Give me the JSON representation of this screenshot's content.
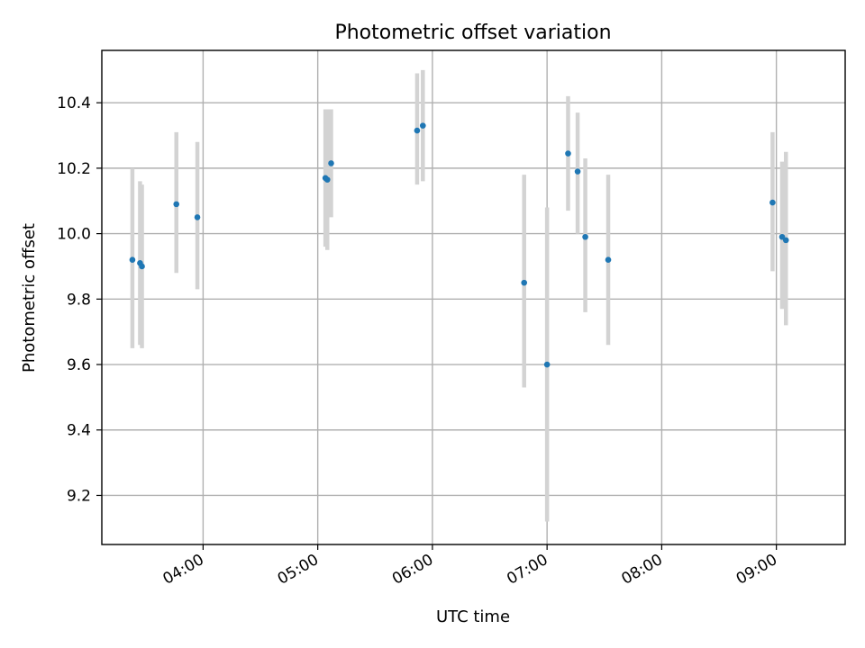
{
  "chart_data": {
    "type": "scatter",
    "title": "Photometric offset variation",
    "xlabel": "UTC time",
    "ylabel": "Photometric offset",
    "x_ticks": [
      "04:00",
      "05:00",
      "06:00",
      "07:00",
      "08:00",
      "09:00"
    ],
    "y_ticks": [
      "9.2",
      "9.4",
      "9.6",
      "9.8",
      "10.0",
      "10.2",
      "10.4"
    ],
    "xlim": [
      "03:07",
      "09:36"
    ],
    "ylim": [
      9.05,
      10.56
    ],
    "grid": true,
    "colors": {
      "point": "#1f77b4",
      "errorbar": "#d3d3d3",
      "grid": "#b0b0b0"
    },
    "points": [
      {
        "time": "03:23",
        "y": 9.92,
        "ylow": 9.65,
        "yhigh": 10.2
      },
      {
        "time": "03:27",
        "y": 9.91,
        "ylow": 9.66,
        "yhigh": 10.16
      },
      {
        "time": "03:28",
        "y": 9.9,
        "ylow": 9.65,
        "yhigh": 10.15
      },
      {
        "time": "03:46",
        "y": 10.09,
        "ylow": 9.88,
        "yhigh": 10.31
      },
      {
        "time": "03:57",
        "y": 10.05,
        "ylow": 9.83,
        "yhigh": 10.28
      },
      {
        "time": "05:04",
        "y": 10.17,
        "ylow": 9.96,
        "yhigh": 10.38
      },
      {
        "time": "05:05",
        "y": 10.165,
        "ylow": 9.95,
        "yhigh": 10.38
      },
      {
        "time": "05:07",
        "y": 10.215,
        "ylow": 10.05,
        "yhigh": 10.38
      },
      {
        "time": "05:52",
        "y": 10.315,
        "ylow": 10.15,
        "yhigh": 10.49
      },
      {
        "time": "05:55",
        "y": 10.33,
        "ylow": 10.16,
        "yhigh": 10.5
      },
      {
        "time": "06:48",
        "y": 9.85,
        "ylow": 9.53,
        "yhigh": 10.18
      },
      {
        "time": "07:00",
        "y": 9.6,
        "ylow": 9.12,
        "yhigh": 10.08
      },
      {
        "time": "07:11",
        "y": 10.245,
        "ylow": 10.07,
        "yhigh": 10.42
      },
      {
        "time": "07:16",
        "y": 10.19,
        "ylow": 10.0,
        "yhigh": 10.37
      },
      {
        "time": "07:20",
        "y": 9.99,
        "ylow": 9.76,
        "yhigh": 10.23
      },
      {
        "time": "07:32",
        "y": 9.92,
        "ylow": 9.66,
        "yhigh": 10.18
      },
      {
        "time": "08:58",
        "y": 10.095,
        "ylow": 9.885,
        "yhigh": 10.31
      },
      {
        "time": "09:03",
        "y": 9.99,
        "ylow": 9.77,
        "yhigh": 10.22
      },
      {
        "time": "09:05",
        "y": 9.98,
        "ylow": 9.72,
        "yhigh": 10.25
      }
    ]
  }
}
